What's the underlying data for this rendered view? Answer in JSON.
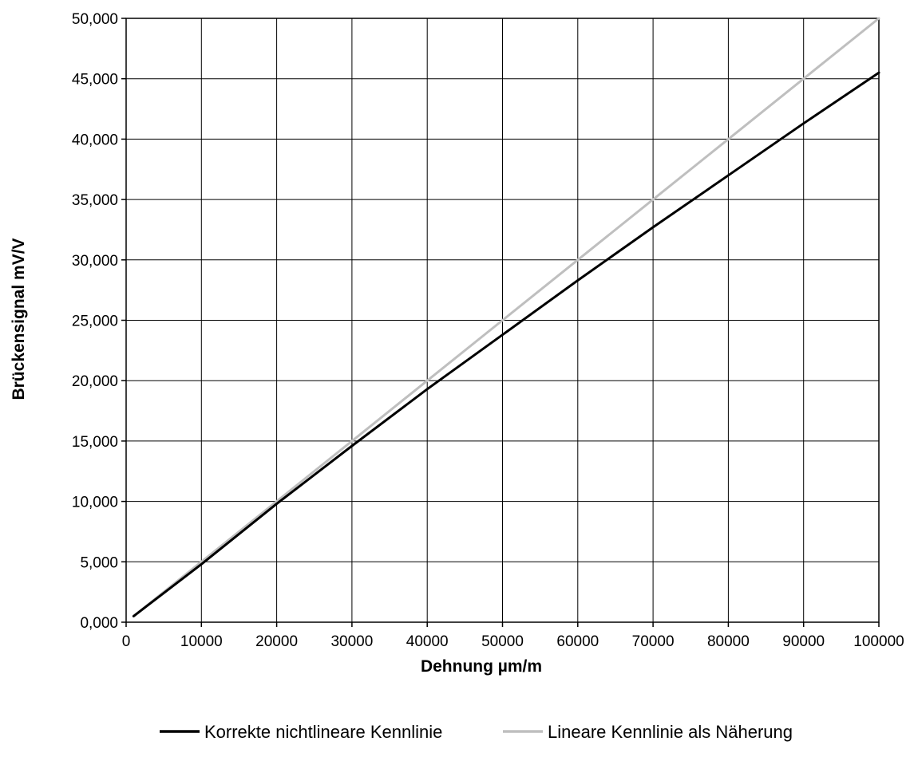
{
  "chart_data": {
    "type": "line",
    "title": "",
    "xlabel": "Dehnung µm/m",
    "ylabel": "Brückensignal mV/V",
    "xlim": [
      0,
      100000
    ],
    "ylim": [
      0,
      50
    ],
    "x_ticks": [
      0,
      10000,
      20000,
      30000,
      40000,
      50000,
      60000,
      70000,
      80000,
      90000,
      100000
    ],
    "x_tick_labels": [
      "0",
      "10000",
      "20000",
      "30000",
      "40000",
      "50000",
      "60000",
      "70000",
      "80000",
      "90000",
      "100000"
    ],
    "y_ticks": [
      0,
      5,
      10,
      15,
      20,
      25,
      30,
      35,
      40,
      45,
      50
    ],
    "y_tick_labels": [
      "0,000",
      "5,000",
      "10,000",
      "15,000",
      "20,000",
      "25,000",
      "30,000",
      "35,000",
      "40,000",
      "45,000",
      "50,000"
    ],
    "grid": true,
    "legend_position": "bottom",
    "x": [
      1000,
      10000,
      20000,
      30000,
      40000,
      50000,
      60000,
      70000,
      80000,
      90000,
      100000
    ],
    "series": [
      {
        "name": "Korrekte nichtlineare Kennlinie",
        "color": "#000000",
        "values": [
          0.5,
          4.8,
          9.8,
          14.6,
          19.3,
          23.8,
          28.3,
          32.7,
          37.0,
          41.3,
          45.5
        ]
      },
      {
        "name": "Lineare Kennlinie als Näherung",
        "color": "#bfbfbf",
        "values": [
          0.5,
          5.0,
          10.0,
          15.0,
          20.0,
          25.0,
          30.0,
          35.0,
          40.0,
          45.0,
          50.0
        ]
      }
    ]
  }
}
